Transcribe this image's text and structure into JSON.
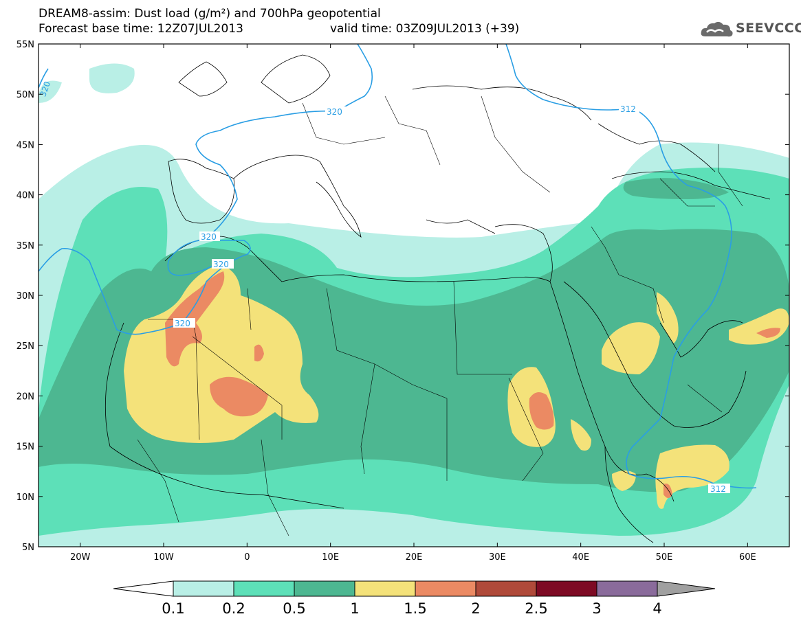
{
  "title_line1": "DREAM8-assim: Dust load (g/m²) and 700hPa geopotential",
  "title_line2": "Forecast base time: 12Z07JUL2013",
  "valid_time": "valid time: 03Z09JUL2013 (+39)",
  "logo": {
    "text": "SEEVCCC",
    "icon": "cloud-icon"
  },
  "lat_labels": [
    "55N",
    "50N",
    "45N",
    "40N",
    "35N",
    "30N",
    "25N",
    "20N",
    "15N",
    "10N",
    "5N"
  ],
  "lon_labels": [
    "20W",
    "10W",
    "0",
    "10E",
    "20E",
    "30E",
    "40E",
    "50E",
    "60E"
  ],
  "contour_labels": [
    "320",
    "320",
    "320",
    "320",
    "320",
    "312",
    "312"
  ],
  "legend": {
    "tick_labels": [
      "0.1",
      "0.2",
      "0.5",
      "1",
      "1.5",
      "2",
      "2.5",
      "3",
      "4"
    ],
    "colors": [
      "#b9efe6",
      "#5de0b8",
      "#4db791",
      "#f4e27a",
      "#eb8a63",
      "#b04a3a",
      "#7d0a24",
      "#8a6b9b",
      "#a0a0a0"
    ]
  },
  "field_colors": {
    "lt01": "#b9efe6",
    "lt02": "#5de0b8",
    "lt05": "#4db791",
    "lt1": "#f4e27a",
    "lt15": "#eb8a63",
    "geopotential_line": "#2a9ee4"
  }
}
